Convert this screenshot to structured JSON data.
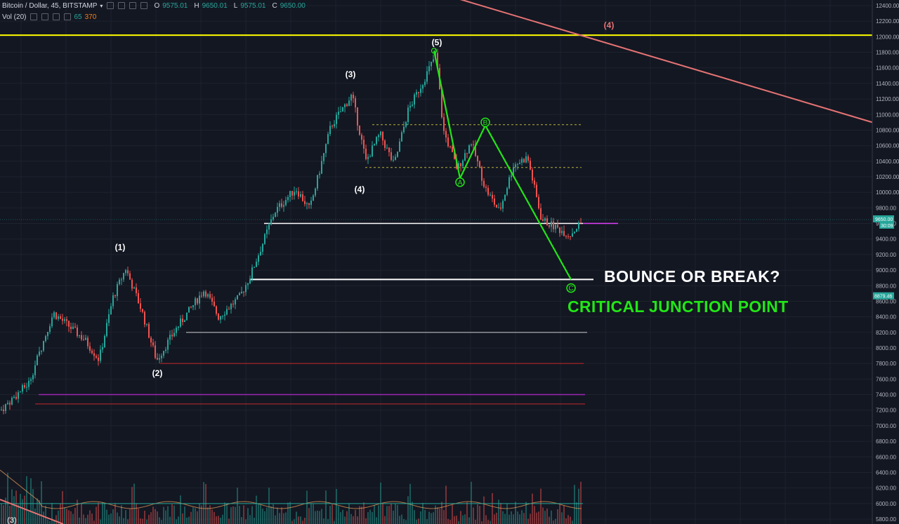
{
  "header": {
    "symbol": "Bitcoin / Dollar, 45, BITSTAMP",
    "caret": "▾",
    "ohlc": [
      {
        "k": "O",
        "v": "9575.01"
      },
      {
        "k": "H",
        "v": "9650.01"
      },
      {
        "k": "L",
        "v": "9575.01"
      },
      {
        "k": "C",
        "v": "9650.00"
      }
    ],
    "volume_label": "Vol (20)",
    "volume_value": "65",
    "volume_ma": "370"
  },
  "annotations": {
    "headline": "BOUNCE OR BREAK?",
    "subhead": "CRITICAL JUNCTION POINT"
  },
  "chart_data": {
    "type": "candlestick",
    "y_axis_side": "right",
    "ylim": [
      5800,
      12500
    ],
    "ytick_labels": [
      "12400.00",
      "12200.00",
      "12000.00",
      "11800.00",
      "11600.00",
      "11400.00",
      "11200.00",
      "11000.00",
      "10800.00",
      "10600.00",
      "10400.00",
      "10200.00",
      "10000.00",
      "9800.00",
      "9600.00",
      "9400.00",
      "9200.00",
      "9000.00",
      "8800.00",
      "8600.00",
      "8400.00",
      "8200.00",
      "8000.00",
      "7800.00",
      "7600.00",
      "7400.00",
      "7200.00",
      "7000.00",
      "6800.00",
      "6600.00",
      "6400.00",
      "6200.00",
      "6000.00",
      "5800.00"
    ],
    "current_price_label": "9650.00",
    "countdown_label": "30:09",
    "alert_price_label": "8879.46",
    "colors": {
      "up": "#26a69a",
      "down": "#ef5350",
      "bg": "#131722",
      "grid": "#1e222d",
      "yellow": "#ffff00",
      "pink": "#e57373",
      "green": "#22e617",
      "magenta": "#e040fb"
    },
    "price_path": [
      [
        0,
        7200
      ],
      [
        40,
        7550
      ],
      [
        75,
        8450
      ],
      [
        120,
        8100
      ],
      [
        140,
        7850
      ],
      [
        160,
        8650
      ],
      [
        178,
        9020
      ],
      [
        200,
        8500
      ],
      [
        222,
        7840
      ],
      [
        250,
        8250
      ],
      [
        290,
        8750
      ],
      [
        310,
        8400
      ],
      [
        340,
        8650
      ],
      [
        355,
        8920
      ],
      [
        390,
        9750
      ],
      [
        420,
        10050
      ],
      [
        440,
        9780
      ],
      [
        470,
        10850
      ],
      [
        500,
        11250
      ],
      [
        520,
        10400
      ],
      [
        540,
        10750
      ],
      [
        560,
        10350
      ],
      [
        580,
        11050
      ],
      [
        600,
        11400
      ],
      [
        620,
        11780
      ],
      [
        630,
        10800
      ],
      [
        650,
        10300
      ],
      [
        670,
        10650
      ],
      [
        690,
        10050
      ],
      [
        710,
        9750
      ],
      [
        730,
        10350
      ],
      [
        750,
        10450
      ],
      [
        770,
        9650
      ],
      [
        790,
        9550
      ],
      [
        810,
        9450
      ],
      [
        830,
        9650
      ]
    ],
    "wave_labels": [
      {
        "text": "(1)",
        "x": 171,
        "price": 9260,
        "color": "#ffffff"
      },
      {
        "text": "(2)",
        "x": 224,
        "price": 7640,
        "color": "#ffffff"
      },
      {
        "text": "(3)",
        "x": 499,
        "price": 11480,
        "color": "#ffffff"
      },
      {
        "text": "(4)",
        "x": 512,
        "price": 10000,
        "color": "#ffffff"
      },
      {
        "text": "(5)",
        "x": 622,
        "price": 11890,
        "color": "#ffffff"
      },
      {
        "text": "(4)",
        "x": 867,
        "price": 12110,
        "color": "#e57373"
      }
    ],
    "abc_points": [
      {
        "label": "A",
        "x": 655,
        "price": 10130
      },
      {
        "label": "B",
        "x": 691,
        "price": 10900
      },
      {
        "label": "C",
        "x": 813,
        "price": 8770
      }
    ],
    "corrective_path": [
      [
        618,
        11820
      ],
      [
        655,
        10180
      ],
      [
        691,
        10860
      ],
      [
        813,
        8880
      ]
    ],
    "horizontal_levels": [
      {
        "price": 12020,
        "color": "#ffff00",
        "x1": 0,
        "x2": 1242,
        "width": 2
      },
      {
        "price": 10870,
        "color": "#b9b336",
        "x1": 530,
        "x2": 830,
        "width": 1,
        "dashed": true
      },
      {
        "price": 10320,
        "color": "#b9b336",
        "x1": 520,
        "x2": 828,
        "width": 1,
        "dashed": true
      },
      {
        "price": 9600,
        "color": "#ffffff",
        "x1": 376,
        "x2": 830,
        "width": 1.5
      },
      {
        "price": 9600,
        "color": "#e040fb",
        "x1": 830,
        "x2": 880,
        "width": 1.5
      },
      {
        "price": 8880,
        "color": "#ffffff",
        "x1": 355,
        "x2": 845,
        "width": 2
      },
      {
        "price": 8200,
        "color": "#d0d0d0",
        "x1": 265,
        "x2": 836,
        "width": 1
      },
      {
        "price": 7800,
        "color": "#c62828",
        "x1": 228,
        "x2": 831,
        "width": 1
      },
      {
        "price": 7400,
        "color": "#9c27b0",
        "x1": 55,
        "x2": 833,
        "width": 1.5
      },
      {
        "price": 7280,
        "color": "#c62828",
        "x1": 50,
        "x2": 833,
        "width": 1
      },
      {
        "price": 6000,
        "color": "#26a69a",
        "x1": 0,
        "x2": 830,
        "width": 1
      }
    ],
    "trendline": {
      "color": "#e57373",
      "points": [
        [
          648,
          12500
        ],
        [
          1242,
          10900
        ]
      ]
    }
  }
}
